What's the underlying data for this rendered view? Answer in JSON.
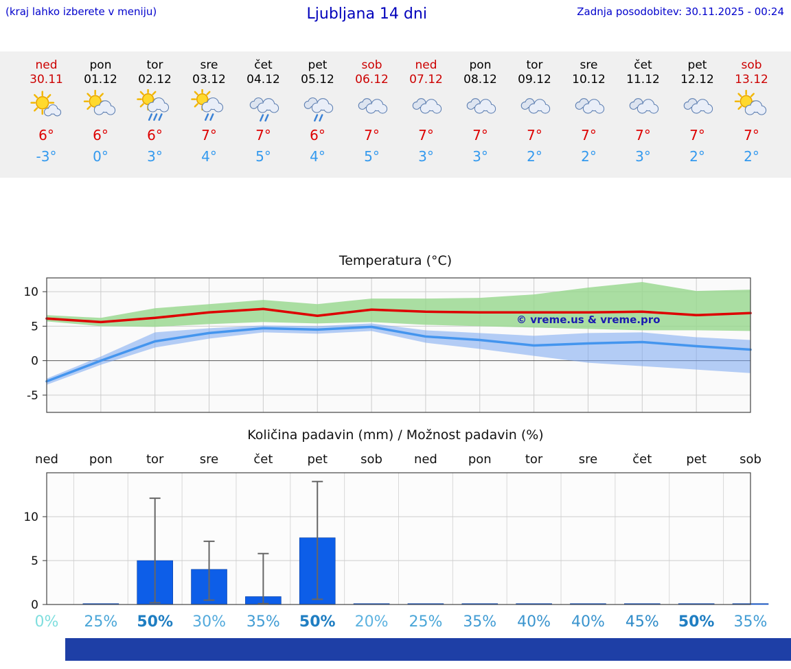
{
  "header": {
    "left_note": "(kraj lahko izberete v meniju)",
    "title": "Ljubljana 14 dni",
    "last_update": "Zadnja posodobitev: 30.11.2025 - 00:24"
  },
  "watermark": "© vreme.us & vreme.pro",
  "forecast": {
    "days": [
      {
        "name": "ned",
        "date": "30.11",
        "weekend": true,
        "icon": "mostly-sunny",
        "tmax": "6°",
        "tmin": "-3°"
      },
      {
        "name": "pon",
        "date": "01.12",
        "weekend": false,
        "icon": "partly-sunny",
        "tmax": "6°",
        "tmin": "0°"
      },
      {
        "name": "tor",
        "date": "02.12",
        "weekend": false,
        "icon": "sun-showers",
        "tmax": "6°",
        "tmin": "3°"
      },
      {
        "name": "sre",
        "date": "03.12",
        "weekend": false,
        "icon": "sun-light-rain",
        "tmax": "7°",
        "tmin": "4°"
      },
      {
        "name": "čet",
        "date": "04.12",
        "weekend": false,
        "icon": "rain",
        "tmax": "7°",
        "tmin": "5°"
      },
      {
        "name": "pet",
        "date": "05.12",
        "weekend": false,
        "icon": "rain",
        "tmax": "6°",
        "tmin": "4°"
      },
      {
        "name": "sob",
        "date": "06.12",
        "weekend": true,
        "icon": "cloudy",
        "tmax": "7°",
        "tmin": "5°"
      },
      {
        "name": "ned",
        "date": "07.12",
        "weekend": true,
        "icon": "cloudy",
        "tmax": "7°",
        "tmin": "3°"
      },
      {
        "name": "pon",
        "date": "08.12",
        "weekend": false,
        "icon": "cloudy",
        "tmax": "7°",
        "tmin": "3°"
      },
      {
        "name": "tor",
        "date": "09.12",
        "weekend": false,
        "icon": "cloudy",
        "tmax": "7°",
        "tmin": "2°"
      },
      {
        "name": "sre",
        "date": "10.12",
        "weekend": false,
        "icon": "cloudy",
        "tmax": "7°",
        "tmin": "2°"
      },
      {
        "name": "čet",
        "date": "11.12",
        "weekend": false,
        "icon": "cloudy",
        "tmax": "7°",
        "tmin": "3°"
      },
      {
        "name": "pet",
        "date": "12.12",
        "weekend": false,
        "icon": "cloudy",
        "tmax": "7°",
        "tmin": "2°"
      },
      {
        "name": "sob",
        "date": "13.12",
        "weekend": true,
        "icon": "partly-sunny",
        "tmax": "7°",
        "tmin": "2°"
      }
    ]
  },
  "chart_data": [
    {
      "type": "line",
      "title": "Temperatura (°C)",
      "categories": [
        "ned",
        "pon",
        "tor",
        "sre",
        "čet",
        "pet",
        "sob",
        "ned",
        "pon",
        "tor",
        "sre",
        "čet",
        "pet",
        "sob"
      ],
      "ylim": [
        -7.5,
        12
      ],
      "yticks": [
        -5,
        0,
        5,
        10
      ],
      "grid": true,
      "series": [
        {
          "name": "max temperature",
          "color": "#dd0000",
          "values": [
            6.1,
            5.6,
            6.2,
            7.0,
            7.5,
            6.5,
            7.4,
            7.1,
            7.0,
            7.0,
            7.0,
            7.1,
            6.6,
            6.9
          ]
        },
        {
          "name": "min temperature",
          "color": "#4495ee",
          "values": [
            -3.0,
            0.0,
            2.8,
            4.0,
            4.7,
            4.5,
            4.9,
            3.5,
            3.0,
            2.2,
            2.5,
            2.7,
            2.1,
            1.6
          ]
        }
      ],
      "bands": [
        {
          "name": "max-range",
          "color": "rgba(150,215,140,0.8)",
          "upper": [
            6.6,
            6.2,
            7.6,
            8.2,
            8.8,
            8.2,
            9.0,
            9.0,
            9.1,
            9.6,
            10.6,
            11.4,
            10.1,
            10.3
          ],
          "lower": [
            5.7,
            5.0,
            4.9,
            5.3,
            5.6,
            5.4,
            5.6,
            5.2,
            5.0,
            4.8,
            4.6,
            4.4,
            4.4,
            4.3
          ]
        },
        {
          "name": "min-range",
          "color": "rgba(120,165,240,0.55)",
          "upper": [
            -2.6,
            0.6,
            4.1,
            4.7,
            5.1,
            5.0,
            5.4,
            4.4,
            4.0,
            3.6,
            4.0,
            4.1,
            3.4,
            3.0
          ],
          "lower": [
            -3.5,
            -0.6,
            1.9,
            3.2,
            4.1,
            3.9,
            4.3,
            2.6,
            1.7,
            0.7,
            -0.3,
            -0.8,
            -1.3,
            -1.8
          ]
        }
      ]
    },
    {
      "type": "bar",
      "title": "Količina padavin (mm) / Možnost padavin (%)",
      "categories": [
        "ned",
        "pon",
        "tor",
        "sre",
        "čet",
        "pet",
        "sob",
        "ned",
        "pon",
        "tor",
        "sre",
        "čet",
        "pet",
        "sob"
      ],
      "values": [
        0,
        0.1,
        5.0,
        4.0,
        0.9,
        7.6,
        0.1,
        0.1,
        0.1,
        0.1,
        0.1,
        0.1,
        0.1,
        0.1
      ],
      "whisker_low": [
        null,
        null,
        0.2,
        0.5,
        0.1,
        0.6,
        null,
        null,
        null,
        null,
        null,
        null,
        null,
        null
      ],
      "whisker_high": [
        null,
        null,
        12.1,
        7.2,
        5.8,
        14.0,
        null,
        null,
        null,
        null,
        null,
        null,
        null,
        null
      ],
      "ylim": [
        0,
        15
      ],
      "yticks": [
        0,
        5,
        10
      ],
      "bar_color": "#0d5ee8",
      "probabilities": [
        {
          "text": "0%",
          "color": "#7fdede",
          "bold": false
        },
        {
          "text": "25%",
          "color": "#4aa6d8",
          "bold": false
        },
        {
          "text": "50%",
          "color": "#1f7ec2",
          "bold": true
        },
        {
          "text": "30%",
          "color": "#53aadc",
          "bold": false
        },
        {
          "text": "35%",
          "color": "#419cd4",
          "bold": false
        },
        {
          "text": "50%",
          "color": "#1f7ec2",
          "bold": true
        },
        {
          "text": "20%",
          "color": "#5cb2e0",
          "bold": false
        },
        {
          "text": "25%",
          "color": "#4aa6d8",
          "bold": false
        },
        {
          "text": "35%",
          "color": "#419cd4",
          "bold": false
        },
        {
          "text": "40%",
          "color": "#3a94ce",
          "bold": false
        },
        {
          "text": "40%",
          "color": "#3a94ce",
          "bold": false
        },
        {
          "text": "45%",
          "color": "#2d8ac8",
          "bold": false
        },
        {
          "text": "50%",
          "color": "#1f7ec2",
          "bold": true
        },
        {
          "text": "35%",
          "color": "#419cd4",
          "bold": false
        }
      ]
    }
  ],
  "footer": {
    "color": "#1e3fa6"
  }
}
